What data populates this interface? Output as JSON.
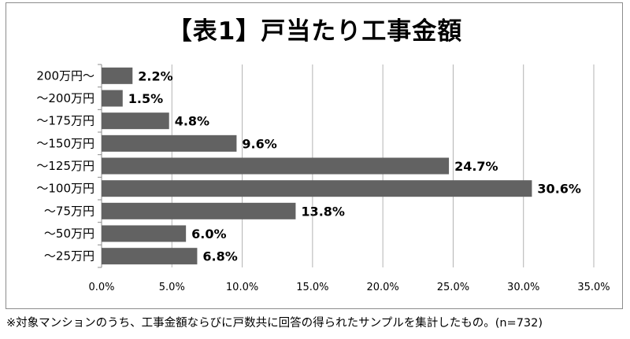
{
  "chart_data": {
    "type": "bar",
    "orientation": "horizontal",
    "title": "【表1】戸当たり工事金額",
    "categories": [
      "200万円〜",
      "〜200万円",
      "〜175万円",
      "〜150万円",
      "〜125万円",
      "〜100万円",
      "〜75万円",
      "〜50万円",
      "〜25万円"
    ],
    "values": [
      2.2,
      1.5,
      4.8,
      9.6,
      24.7,
      30.6,
      13.8,
      6.0,
      6.8
    ],
    "value_labels": [
      "2.2%",
      "1.5%",
      "4.8%",
      "9.6%",
      "24.7%",
      "30.6%",
      "13.8%",
      "6.0%",
      "6.8%"
    ],
    "x_ticks": [
      0,
      5,
      10,
      15,
      20,
      25,
      30,
      35
    ],
    "x_tick_labels": [
      "0.0%",
      "5.0%",
      "10.0%",
      "15.0%",
      "20.0%",
      "25.0%",
      "30.0%",
      "35.0%"
    ],
    "xlim": [
      0,
      35
    ],
    "xlabel": "",
    "ylabel": "",
    "grid": "vertical",
    "legend": "none",
    "bar_color": "#626262",
    "grid_color": "#b3b3b3"
  },
  "footnote": "※対象マンションのうち、工事金額ならびに戸数共に回答の得られたサンプルを集計したもの。(n=732)"
}
